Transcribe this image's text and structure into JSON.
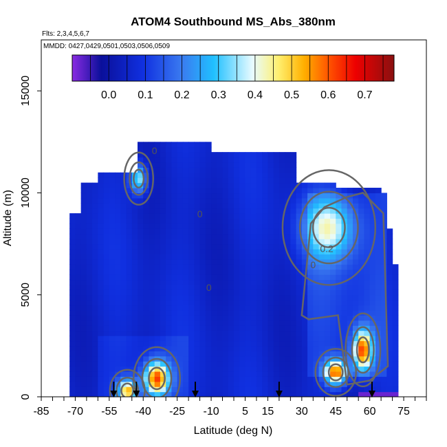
{
  "chart_data": {
    "type": "heatmap",
    "title": "ATOM4 Southbound MS_Abs_380nm",
    "subtitle_flights": "Flts: 2,3,4,5,6,7",
    "subtitle_dates": "MMDD: 0427,0429,0501,0503,0506,0509",
    "xlabel": "Latitude (deg N)",
    "ylabel": "Altitude (m)",
    "xlim": [
      -85,
      85
    ],
    "ylim": [
      0,
      17500
    ],
    "x_ticks": [
      -85,
      -70,
      -55,
      -40,
      -25,
      -10,
      5,
      15,
      30,
      45,
      60,
      75
    ],
    "y_ticks": [
      0,
      5000,
      10000,
      15000
    ],
    "colorbar": {
      "range": [
        -0.1,
        0.78
      ],
      "ticks": [
        0.0,
        0.1,
        0.2,
        0.3,
        0.4,
        0.5,
        0.6,
        0.7
      ],
      "tick_labels": [
        "0.0",
        "0.1",
        "0.2",
        "0.3",
        "0.4",
        "0.5",
        "0.6",
        "0.7"
      ]
    },
    "contour_labels": [
      {
        "text": "0",
        "lat": -35,
        "alt": 11900
      },
      {
        "text": "0",
        "lat": -15,
        "alt": 8800
      },
      {
        "text": "0.2",
        "lat": 41,
        "alt": 7100
      },
      {
        "text": "0",
        "lat": 35,
        "alt": 6300
      },
      {
        "text": "0",
        "lat": -11,
        "alt": 5200
      }
    ],
    "arrow_latitudes": [
      -53,
      -43,
      -17,
      20,
      61
    ],
    "hotspots": [
      {
        "lat": -42,
        "alt": 10700,
        "value": 0.32,
        "sx": 2.5,
        "sy": 500
      },
      {
        "lat": 42,
        "alt": 8300,
        "value": 0.3,
        "sx": 8,
        "sy": 1100
      },
      {
        "lat": 57,
        "alt": 2300,
        "value": 0.52,
        "sx": 3,
        "sy": 700
      },
      {
        "lat": 45,
        "alt": 1200,
        "value": 0.5,
        "sx": 3.5,
        "sy": 450
      },
      {
        "lat": -34,
        "alt": 900,
        "value": 0.55,
        "sx": 4,
        "sy": 600
      },
      {
        "lat": -47,
        "alt": 300,
        "value": 0.45,
        "sx": 3,
        "sy": 400
      }
    ]
  },
  "colors": {
    "background": "#ffffff",
    "dominant_field": "#1428d8",
    "contour": "#666666"
  }
}
